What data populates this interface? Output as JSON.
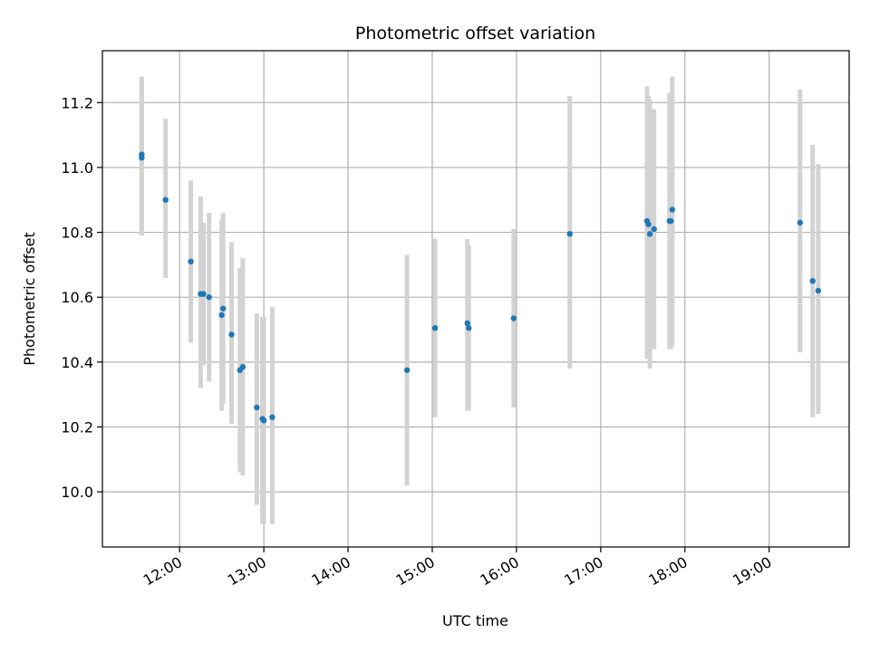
{
  "chart_data": {
    "type": "scatter",
    "title": "Photometric offset variation",
    "xlabel": "UTC time",
    "ylabel": "Photometric offset",
    "x_unit": "hours UTC",
    "xlim": [
      "11:05",
      "19:57"
    ],
    "ylim": [
      9.83,
      11.36
    ],
    "x_ticks": [
      "12:00",
      "13:00",
      "14:00",
      "15:00",
      "16:00",
      "17:00",
      "18:00",
      "19:00"
    ],
    "y_ticks": [
      10.0,
      10.2,
      10.4,
      10.6,
      10.8,
      11.0,
      11.2
    ],
    "grid": true,
    "colors": {
      "points": "#1f77b4",
      "error_bars": "#d3d3d3",
      "grid": "#b0b0b0"
    },
    "points": [
      {
        "t": "11:33",
        "y": 11.04,
        "lo": 10.79,
        "hi": 11.28
      },
      {
        "t": "11:33",
        "y": 11.03,
        "lo": 10.79,
        "hi": 11.28
      },
      {
        "t": "11:50",
        "y": 10.9,
        "lo": 10.66,
        "hi": 11.15
      },
      {
        "t": "12:08",
        "y": 10.71,
        "lo": 10.46,
        "hi": 10.96
      },
      {
        "t": "12:15",
        "y": 10.61,
        "lo": 10.32,
        "hi": 10.91
      },
      {
        "t": "12:17",
        "y": 10.61,
        "lo": 10.39,
        "hi": 10.83
      },
      {
        "t": "12:21",
        "y": 10.6,
        "lo": 10.34,
        "hi": 10.86
      },
      {
        "t": "12:30",
        "y": 10.545,
        "lo": 10.25,
        "hi": 10.84
      },
      {
        "t": "12:31",
        "y": 10.565,
        "lo": 10.27,
        "hi": 10.86
      },
      {
        "t": "12:37",
        "y": 10.485,
        "lo": 10.21,
        "hi": 10.77
      },
      {
        "t": "12:43",
        "y": 10.375,
        "lo": 10.06,
        "hi": 10.69
      },
      {
        "t": "12:45",
        "y": 10.385,
        "lo": 10.05,
        "hi": 10.72
      },
      {
        "t": "12:55",
        "y": 10.26,
        "lo": 9.96,
        "hi": 10.55
      },
      {
        "t": "12:59",
        "y": 10.225,
        "lo": 9.9,
        "hi": 10.54
      },
      {
        "t": "13:00",
        "y": 10.22,
        "lo": 9.9,
        "hi": 10.54
      },
      {
        "t": "13:06",
        "y": 10.23,
        "lo": 9.9,
        "hi": 10.57
      },
      {
        "t": "14:42",
        "y": 10.375,
        "lo": 10.02,
        "hi": 10.73
      },
      {
        "t": "15:02",
        "y": 10.505,
        "lo": 10.23,
        "hi": 10.78
      },
      {
        "t": "15:25",
        "y": 10.52,
        "lo": 10.25,
        "hi": 10.78
      },
      {
        "t": "15:26",
        "y": 10.505,
        "lo": 10.25,
        "hi": 10.76
      },
      {
        "t": "15:58",
        "y": 10.535,
        "lo": 10.26,
        "hi": 10.81
      },
      {
        "t": "16:38",
        "y": 10.795,
        "lo": 10.38,
        "hi": 11.22
      },
      {
        "t": "17:33",
        "y": 10.835,
        "lo": 10.41,
        "hi": 11.25
      },
      {
        "t": "17:34",
        "y": 10.825,
        "lo": 10.41,
        "hi": 11.22
      },
      {
        "t": "17:35",
        "y": 10.795,
        "lo": 10.38,
        "hi": 11.21
      },
      {
        "t": "17:38",
        "y": 10.81,
        "lo": 10.44,
        "hi": 11.18
      },
      {
        "t": "17:49",
        "y": 10.835,
        "lo": 10.44,
        "hi": 11.23
      },
      {
        "t": "17:50",
        "y": 10.835,
        "lo": 10.44,
        "hi": 11.23
      },
      {
        "t": "17:51",
        "y": 10.87,
        "lo": 10.45,
        "hi": 11.28
      },
      {
        "t": "19:22",
        "y": 10.83,
        "lo": 10.43,
        "hi": 11.24
      },
      {
        "t": "19:31",
        "y": 10.65,
        "lo": 10.23,
        "hi": 11.07
      },
      {
        "t": "19:35",
        "y": 10.62,
        "lo": 10.24,
        "hi": 11.01
      }
    ]
  }
}
